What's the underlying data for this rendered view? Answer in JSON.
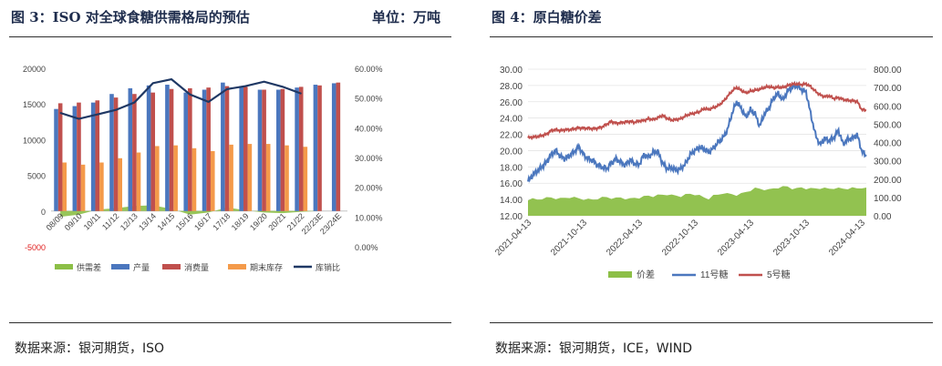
{
  "left": {
    "title": "图 3：ISO 对全球食糖供需格局的预估",
    "unit": "单位：万吨",
    "source": "数据来源：银河期货，ISO"
  },
  "right": {
    "title": "图 4：原白糖价差",
    "source": "数据来源：银河期货，ICE，WIND"
  },
  "colors": {
    "green": "#8cbf47",
    "blue": "#4b77be",
    "red": "#c0504d",
    "orange": "#f49a4a",
    "navy": "#1f3864"
  },
  "chart_data": [
    {
      "type": "bar",
      "title": "ISO 对全球食糖供需格局的预估",
      "categories": [
        "08/09",
        "09/10",
        "10/11",
        "11/12",
        "12/13",
        "13/14",
        "14/15",
        "15/16",
        "16/17",
        "17/18",
        "18/19",
        "19/20",
        "20/21",
        "21/22",
        "22/23E",
        "23/24E"
      ],
      "y_left": {
        "range": [
          -5000,
          20000
        ],
        "ticks": [
          "-5000",
          "0",
          "5000",
          "10000",
          "15000",
          "20000"
        ],
        "tick_values": [
          -5000,
          0,
          5000,
          10000,
          15000,
          20000
        ]
      },
      "y_right": {
        "range": [
          0,
          60
        ],
        "ticks": [
          "0.00%",
          "10.00%",
          "20.00%",
          "30.00%",
          "40.00%",
          "50.00%",
          "60.00%"
        ],
        "tick_values": [
          0,
          10,
          20,
          30,
          40,
          50,
          60
        ]
      },
      "series": [
        {
          "name": "供需差",
          "type": "area",
          "axis": "left",
          "values": [
            -800,
            -500,
            200,
            400,
            700,
            800,
            300,
            -500,
            -200,
            500,
            100,
            -200,
            -300,
            -100,
            0,
            0
          ]
        },
        {
          "name": "产量",
          "type": "bar",
          "axis": "left",
          "values": [
            14300,
            14700,
            15200,
            16400,
            17200,
            17600,
            17700,
            16600,
            17000,
            18000,
            17500,
            17000,
            17000,
            17300,
            17700,
            17900
          ]
        },
        {
          "name": "消费量",
          "type": "bar",
          "axis": "left",
          "values": [
            15100,
            15200,
            15500,
            15900,
            16400,
            16600,
            17100,
            17200,
            17300,
            17500,
            17400,
            17000,
            17100,
            17400,
            17600,
            18000
          ]
        },
        {
          "name": "期末库存",
          "type": "bar",
          "axis": "left",
          "values": [
            6800,
            6500,
            6800,
            7400,
            8200,
            9100,
            9200,
            8800,
            8400,
            9300,
            9400,
            9400,
            9200,
            9000,
            null,
            null
          ]
        },
        {
          "name": "库销比",
          "type": "line",
          "axis": "right",
          "values": [
            45.0,
            43.0,
            44.5,
            46.0,
            48.5,
            55.0,
            56.3,
            51.2,
            48.7,
            53.0,
            54.0,
            55.5,
            53.8,
            51.5,
            null,
            null
          ]
        }
      ],
      "legend": [
        "供需差",
        "产量",
        "消费量",
        "期末库存",
        "库销比"
      ]
    },
    {
      "type": "line",
      "title": "原白糖价差",
      "x_ticks": [
        "2021-04-13",
        "2021-10-13",
        "2022-04-13",
        "2022-10-13",
        "2023-04-13",
        "2023-10-13",
        "2024-04-13"
      ],
      "y_left": {
        "range": [
          12,
          30
        ],
        "ticks": [
          "12.00",
          "14.00",
          "16.00",
          "18.00",
          "20.00",
          "22.00",
          "24.00",
          "26.00",
          "28.00",
          "30.00"
        ],
        "tick_values": [
          12,
          14,
          16,
          18,
          20,
          22,
          24,
          26,
          28,
          30
        ]
      },
      "y_right": {
        "range": [
          0,
          800
        ],
        "ticks": [
          "0.00",
          "100.00",
          "200.00",
          "300.00",
          "400.00",
          "500.00",
          "600.00",
          "700.00",
          "800.00"
        ],
        "tick_values": [
          0,
          100,
          200,
          300,
          400,
          500,
          600,
          700,
          800
        ]
      },
      "series": [
        {
          "name": "价差",
          "type": "area",
          "axis": "right",
          "x": [
            0,
            0.5,
            1,
            1.5,
            2,
            2.5,
            3,
            3.5,
            4,
            4.5,
            5,
            5.5,
            6,
            6.5,
            7,
            7.5,
            8,
            8.5,
            9,
            9.5,
            10,
            10.5,
            11,
            11.5,
            12,
            12.5,
            13,
            13.5,
            14,
            14.5,
            15,
            15.5,
            16,
            16.5,
            17,
            17.5,
            18,
            18.5,
            19,
            19.5,
            20,
            20.5,
            21,
            21.5,
            22,
            22.5,
            23,
            23.5,
            24,
            24.5,
            25,
            25.5,
            26,
            26.5,
            27,
            27.5,
            28,
            28.5,
            29,
            29.5,
            30,
            30.5,
            31,
            31.5,
            32,
            32.5,
            33,
            33.5,
            34,
            34.5,
            35,
            35.5,
            36,
            36.5
          ],
          "values": [
            90,
            92,
            88,
            95,
            98,
            100,
            96,
            94,
            98,
            102,
            100,
            95,
            92,
            90,
            88,
            95,
            100,
            102,
            98,
            96,
            100,
            95,
            92,
            98,
            100,
            105,
            110,
            108,
            112,
            115,
            118,
            112,
            110,
            108,
            115,
            120,
            118,
            110,
            100,
            95,
            110,
            115,
            125,
            120,
            118,
            115,
            120,
            130,
            140,
            150,
            148,
            145,
            142,
            150,
            155,
            158,
            160,
            150,
            148,
            155,
            150,
            148,
            150,
            152,
            150,
            148,
            152,
            150,
            148,
            150,
            152,
            150,
            155,
            150
          ]
        },
        {
          "name": "11号糖",
          "type": "line",
          "axis": "left",
          "x": [
            0,
            0.5,
            1,
            1.5,
            2,
            2.5,
            3,
            3.5,
            4,
            4.5,
            5,
            5.5,
            6,
            6.5,
            7,
            7.5,
            8,
            8.5,
            9,
            9.5,
            10,
            10.5,
            11,
            11.5,
            12,
            12.5,
            13,
            13.5,
            14,
            14.5,
            15,
            15.5,
            16,
            16.5,
            17,
            17.5,
            18,
            18.5,
            19,
            19.5,
            20,
            20.5,
            21,
            21.5,
            22,
            22.5,
            23,
            23.5,
            24,
            24.5,
            25,
            25.5,
            26,
            26.5,
            27,
            27.5,
            28,
            28.5,
            29,
            29.5,
            30,
            30.5,
            31,
            31.5,
            32,
            32.5,
            33,
            33.5,
            34,
            34.5,
            35,
            35.5,
            36,
            36.5
          ],
          "values": [
            16.2,
            17.0,
            17.5,
            18.0,
            18.6,
            19.5,
            20.0,
            19.3,
            19.0,
            19.4,
            19.9,
            20.5,
            19.5,
            19.0,
            18.8,
            18.2,
            18.0,
            17.8,
            18.5,
            19.0,
            18.6,
            18.2,
            18.9,
            18.4,
            18.3,
            19.5,
            19.2,
            19.8,
            19.9,
            18.5,
            17.8,
            17.9,
            17.6,
            17.8,
            18.4,
            19.5,
            20.0,
            20.4,
            20.2,
            19.8,
            20.3,
            21.0,
            21.5,
            22.5,
            24.5,
            26.0,
            25.2,
            24.1,
            25.0,
            24.5,
            23.0,
            24.5,
            25.2,
            26.5,
            27.0,
            26.2,
            27.3,
            27.8,
            28.0,
            27.5,
            27.2,
            24.5,
            22.0,
            20.7,
            21.5,
            21.2,
            21.6,
            22.5,
            20.8,
            21.4,
            21.5,
            22.0,
            20.0,
            19.3
          ]
        },
        {
          "name": "5号糖",
          "type": "line",
          "axis": "right",
          "x": [
            0,
            0.5,
            1,
            1.5,
            2,
            2.5,
            3,
            3.5,
            4,
            4.5,
            5,
            5.5,
            6,
            6.5,
            7,
            7.5,
            8,
            8.5,
            9,
            9.5,
            10,
            10.5,
            11,
            11.5,
            12,
            12.5,
            13,
            13.5,
            14,
            14.5,
            15,
            15.5,
            16,
            16.5,
            17,
            17.5,
            18,
            18.5,
            19,
            19.5,
            20,
            20.5,
            21,
            21.5,
            22,
            22.5,
            23,
            23.5,
            24,
            24.5,
            25,
            25.5,
            26,
            26.5,
            27,
            27.5,
            28,
            28.5,
            29,
            29.5,
            30,
            30.5,
            31,
            31.5,
            32,
            32.5,
            33,
            33.5,
            34,
            34.5,
            35,
            35.5,
            36,
            36.5
          ],
          "values": [
            425,
            430,
            432,
            438,
            445,
            465,
            470,
            465,
            470,
            470,
            475,
            480,
            478,
            478,
            475,
            478,
            485,
            500,
            515,
            505,
            508,
            512,
            515,
            510,
            518,
            520,
            530,
            525,
            535,
            548,
            532,
            522,
            525,
            530,
            545,
            555,
            560,
            568,
            585,
            580,
            590,
            600,
            620,
            650,
            680,
            700,
            685,
            670,
            680,
            685,
            690,
            700,
            705,
            698,
            702,
            700,
            710,
            718,
            720,
            715,
            720,
            705,
            680,
            660,
            650,
            655,
            640,
            645,
            635,
            630,
            628,
            625,
            580,
            575
          ]
        }
      ],
      "legend": [
        "价差",
        "11号糖",
        "5号糖"
      ]
    }
  ]
}
